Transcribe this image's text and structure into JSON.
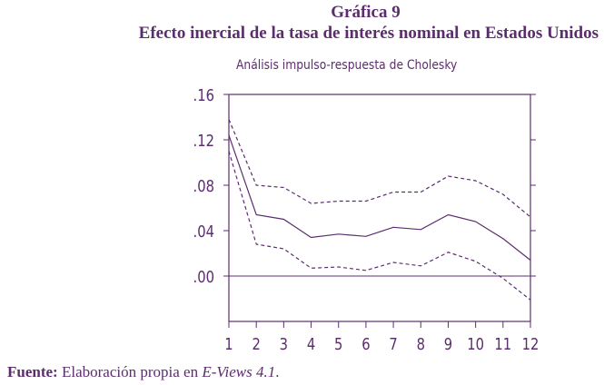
{
  "header": {
    "figure_label": "Gráfica 9",
    "title": "Efecto inercial de la tasa de interés nominal en Estados Unidos",
    "subtitle": "Análisis impulso-respuesta de Cholesky"
  },
  "footer": {
    "source_label": "Fuente:",
    "source_text_1": "Elaboración propia en ",
    "source_software": "E-Views 4.1",
    "source_text_2": "."
  },
  "colors": {
    "ink": "#5c2d6e"
  },
  "chart_data": {
    "type": "line",
    "x": [
      1,
      2,
      3,
      4,
      5,
      6,
      7,
      8,
      9,
      10,
      11,
      12
    ],
    "x_tick_labels": [
      "1",
      "2",
      "3",
      "4",
      "5",
      "6",
      "7",
      "8",
      "9",
      "10",
      "11",
      "12"
    ],
    "y_tick_values": [
      0.16,
      0.12,
      0.08,
      0.04,
      0.0
    ],
    "y_tick_labels": [
      ".16",
      ".12",
      ".08",
      ".04",
      ".00"
    ],
    "ylim": [
      -0.04,
      0.16
    ],
    "xlim": [
      1,
      12
    ],
    "zero_line": true,
    "grid": false,
    "series": [
      {
        "style": "solid",
        "values": [
          0.124,
          0.054,
          0.05,
          0.034,
          0.037,
          0.035,
          0.043,
          0.041,
          0.054,
          0.048,
          0.033,
          0.014
        ]
      },
      {
        "style": "dashed",
        "values": [
          0.138,
          0.08,
          0.078,
          0.064,
          0.066,
          0.066,
          0.074,
          0.074,
          0.088,
          0.084,
          0.072,
          0.052
        ]
      },
      {
        "style": "dashed",
        "values": [
          0.11,
          0.028,
          0.024,
          0.007,
          0.008,
          0.005,
          0.012,
          0.009,
          0.021,
          0.013,
          -0.002,
          -0.021
        ]
      }
    ]
  }
}
